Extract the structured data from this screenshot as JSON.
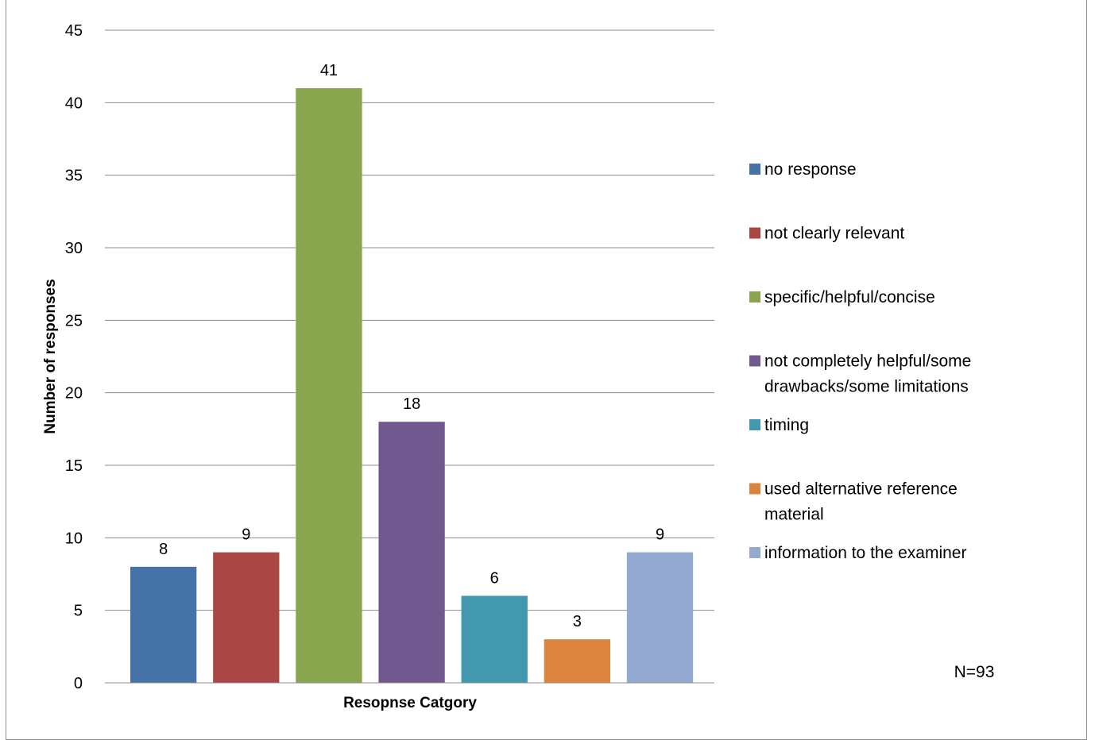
{
  "chart_data": {
    "type": "bar",
    "xlabel": "Resopnse Catgory",
    "ylabel": "Number of responses",
    "ylim": [
      0,
      45
    ],
    "yticks": [
      0,
      5,
      10,
      15,
      20,
      25,
      30,
      35,
      40,
      45
    ],
    "grid": true,
    "legend_position": "right",
    "series": [
      {
        "name": "no response",
        "values": [
          8
        ],
        "color": "#4572A7"
      },
      {
        "name": "not clearly relevant",
        "values": [
          9
        ],
        "color": "#AA4643"
      },
      {
        "name": "specific/helpful/concise",
        "values": [
          41
        ],
        "color": "#89A54E"
      },
      {
        "name": "not completely helpful/some drawbacks/some limitations",
        "values": [
          18
        ],
        "color": "#71588F"
      },
      {
        "name": "timing",
        "values": [
          6
        ],
        "color": "#4198AF"
      },
      {
        "name": "used alternative reference material",
        "values": [
          3
        ],
        "color": "#DB843D"
      },
      {
        "name": "information to the examiner",
        "values": [
          9
        ],
        "color": "#93A9CF"
      }
    ],
    "annotation": "N=93"
  }
}
